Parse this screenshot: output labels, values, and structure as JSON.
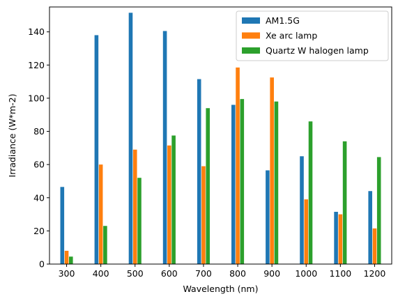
{
  "chart_data": {
    "type": "bar",
    "xlabel": "Wavelength (nm)",
    "ylabel": "Irradiance (W*m-2)",
    "categories": [
      "300",
      "400",
      "500",
      "600",
      "700",
      "800",
      "900",
      "1000",
      "1100",
      "1200"
    ],
    "ylim": [
      0,
      155
    ],
    "yticks": [
      0,
      20,
      40,
      60,
      80,
      100,
      120,
      140
    ],
    "grid": false,
    "legend_position": "upper right",
    "series": [
      {
        "name": "AM1.5G",
        "color": "#1f77b4",
        "values": [
          46.5,
          138,
          151.5,
          140.5,
          111.5,
          96,
          56.5,
          65,
          31.5,
          44
        ]
      },
      {
        "name": "Xe arc lamp",
        "color": "#ff7f0e",
        "values": [
          8,
          60,
          69,
          71.5,
          59,
          118.5,
          112.5,
          39,
          30,
          21.5
        ]
      },
      {
        "name": "Quartz W halogen lamp",
        "color": "#2ca02c",
        "values": [
          4.5,
          23,
          52,
          77.5,
          94,
          99.5,
          98,
          86,
          74,
          64.5
        ]
      }
    ]
  }
}
